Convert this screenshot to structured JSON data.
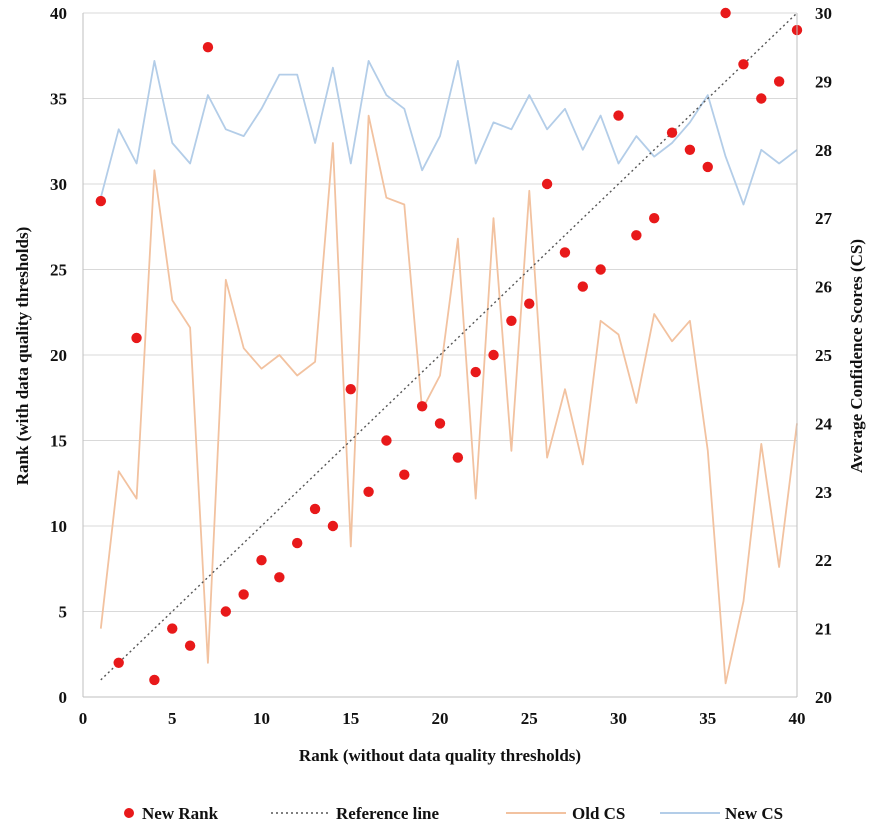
{
  "chart_data": {
    "type": "line",
    "title": "",
    "xlabel": "Rank (without data quality thresholds)",
    "ylabel": "Rank (with data quality thresholds)",
    "y2label": "Average Confidence Scores (CS)",
    "xlim": [
      0,
      40
    ],
    "ylim": [
      0,
      40
    ],
    "y2lim": [
      20,
      30
    ],
    "xticks": [
      0,
      5,
      10,
      15,
      20,
      25,
      30,
      35,
      40
    ],
    "yticks": [
      0,
      5,
      10,
      15,
      20,
      25,
      30,
      35,
      40
    ],
    "y2ticks": [
      20,
      21,
      22,
      23,
      24,
      25,
      26,
      27,
      28,
      29,
      30
    ],
    "grid": "horizontal",
    "legend_position": "bottom",
    "series": [
      {
        "name": "New Rank",
        "kind": "scatter",
        "axis": "left",
        "color": "#e8191a",
        "points": [
          [
            1,
            29
          ],
          [
            2,
            2
          ],
          [
            3,
            21
          ],
          [
            4,
            1
          ],
          [
            5,
            4
          ],
          [
            6,
            3
          ],
          [
            7,
            38
          ],
          [
            8,
            5
          ],
          [
            9,
            6
          ],
          [
            10,
            8
          ],
          [
            11,
            7
          ],
          [
            12,
            9
          ],
          [
            13,
            11
          ],
          [
            14,
            10
          ],
          [
            15,
            18
          ],
          [
            16,
            12
          ],
          [
            17,
            15
          ],
          [
            18,
            13
          ],
          [
            19,
            17
          ],
          [
            20,
            16
          ],
          [
            21,
            14
          ],
          [
            22,
            19
          ],
          [
            23,
            20
          ],
          [
            24,
            22
          ],
          [
            25,
            23
          ],
          [
            26,
            30
          ],
          [
            27,
            26
          ],
          [
            28,
            24
          ],
          [
            29,
            25
          ],
          [
            30,
            34
          ],
          [
            31,
            27
          ],
          [
            32,
            28
          ],
          [
            33,
            33
          ],
          [
            34,
            32
          ],
          [
            35,
            31
          ],
          [
            36,
            40
          ],
          [
            37,
            37
          ],
          [
            38,
            35
          ],
          [
            39,
            36
          ],
          [
            40,
            39
          ]
        ]
      },
      {
        "name": "Reference line",
        "kind": "line",
        "style": "dotted",
        "axis": "left",
        "color": "#555555",
        "points": [
          [
            1,
            1
          ],
          [
            40,
            40
          ]
        ]
      },
      {
        "name": "Old CS",
        "kind": "line",
        "axis": "right",
        "color": "#f2c2a0",
        "points": [
          [
            1,
            21
          ],
          [
            2,
            23.3
          ],
          [
            3,
            22.9
          ],
          [
            4,
            27.7
          ],
          [
            5,
            25.8
          ],
          [
            6,
            25.4
          ],
          [
            7,
            20.5
          ],
          [
            8,
            26.1
          ],
          [
            9,
            25.1
          ],
          [
            10,
            24.8
          ],
          [
            11,
            25
          ],
          [
            12,
            24.7
          ],
          [
            13,
            24.9
          ],
          [
            14,
            28.1
          ],
          [
            15,
            22.2
          ],
          [
            16,
            28.5
          ],
          [
            17,
            27.3
          ],
          [
            18,
            27.2
          ],
          [
            19,
            24.2
          ],
          [
            20,
            24.7
          ],
          [
            21,
            26.7
          ],
          [
            22,
            22.9
          ],
          [
            23,
            27
          ],
          [
            24,
            23.6
          ],
          [
            25,
            27.4
          ],
          [
            26,
            23.5
          ],
          [
            27,
            24.5
          ],
          [
            28,
            23.4
          ],
          [
            29,
            25.5
          ],
          [
            30,
            25.3
          ],
          [
            31,
            24.3
          ],
          [
            32,
            25.6
          ],
          [
            33,
            25.2
          ],
          [
            34,
            25.5
          ],
          [
            35,
            23.6
          ],
          [
            36,
            20.2
          ],
          [
            37,
            21.4
          ],
          [
            38,
            23.7
          ],
          [
            39,
            21.9
          ],
          [
            40,
            24
          ]
        ]
      },
      {
        "name": "New CS",
        "kind": "line",
        "axis": "right",
        "color": "#b3cde8",
        "points": [
          [
            1,
            27.3
          ],
          [
            2,
            28.3
          ],
          [
            3,
            27.8
          ],
          [
            4,
            29.3
          ],
          [
            5,
            28.1
          ],
          [
            6,
            27.8
          ],
          [
            7,
            28.8
          ],
          [
            8,
            28.3
          ],
          [
            9,
            28.2
          ],
          [
            10,
            28.6
          ],
          [
            11,
            29.1
          ],
          [
            12,
            29.1
          ],
          [
            13,
            28.1
          ],
          [
            14,
            29.2
          ],
          [
            15,
            27.8
          ],
          [
            16,
            29.3
          ],
          [
            17,
            28.8
          ],
          [
            18,
            28.6
          ],
          [
            19,
            27.7
          ],
          [
            20,
            28.2
          ],
          [
            21,
            29.3
          ],
          [
            22,
            27.8
          ],
          [
            23,
            28.4
          ],
          [
            24,
            28.3
          ],
          [
            25,
            28.8
          ],
          [
            26,
            28.3
          ],
          [
            27,
            28.6
          ],
          [
            28,
            28
          ],
          [
            29,
            28.5
          ],
          [
            30,
            27.8
          ],
          [
            31,
            28.2
          ],
          [
            32,
            27.9
          ],
          [
            33,
            28.1
          ],
          [
            34,
            28.4
          ],
          [
            35,
            28.8
          ],
          [
            36,
            27.9
          ],
          [
            37,
            27.2
          ],
          [
            38,
            28
          ],
          [
            39,
            27.8
          ],
          [
            40,
            28
          ]
        ]
      }
    ]
  }
}
